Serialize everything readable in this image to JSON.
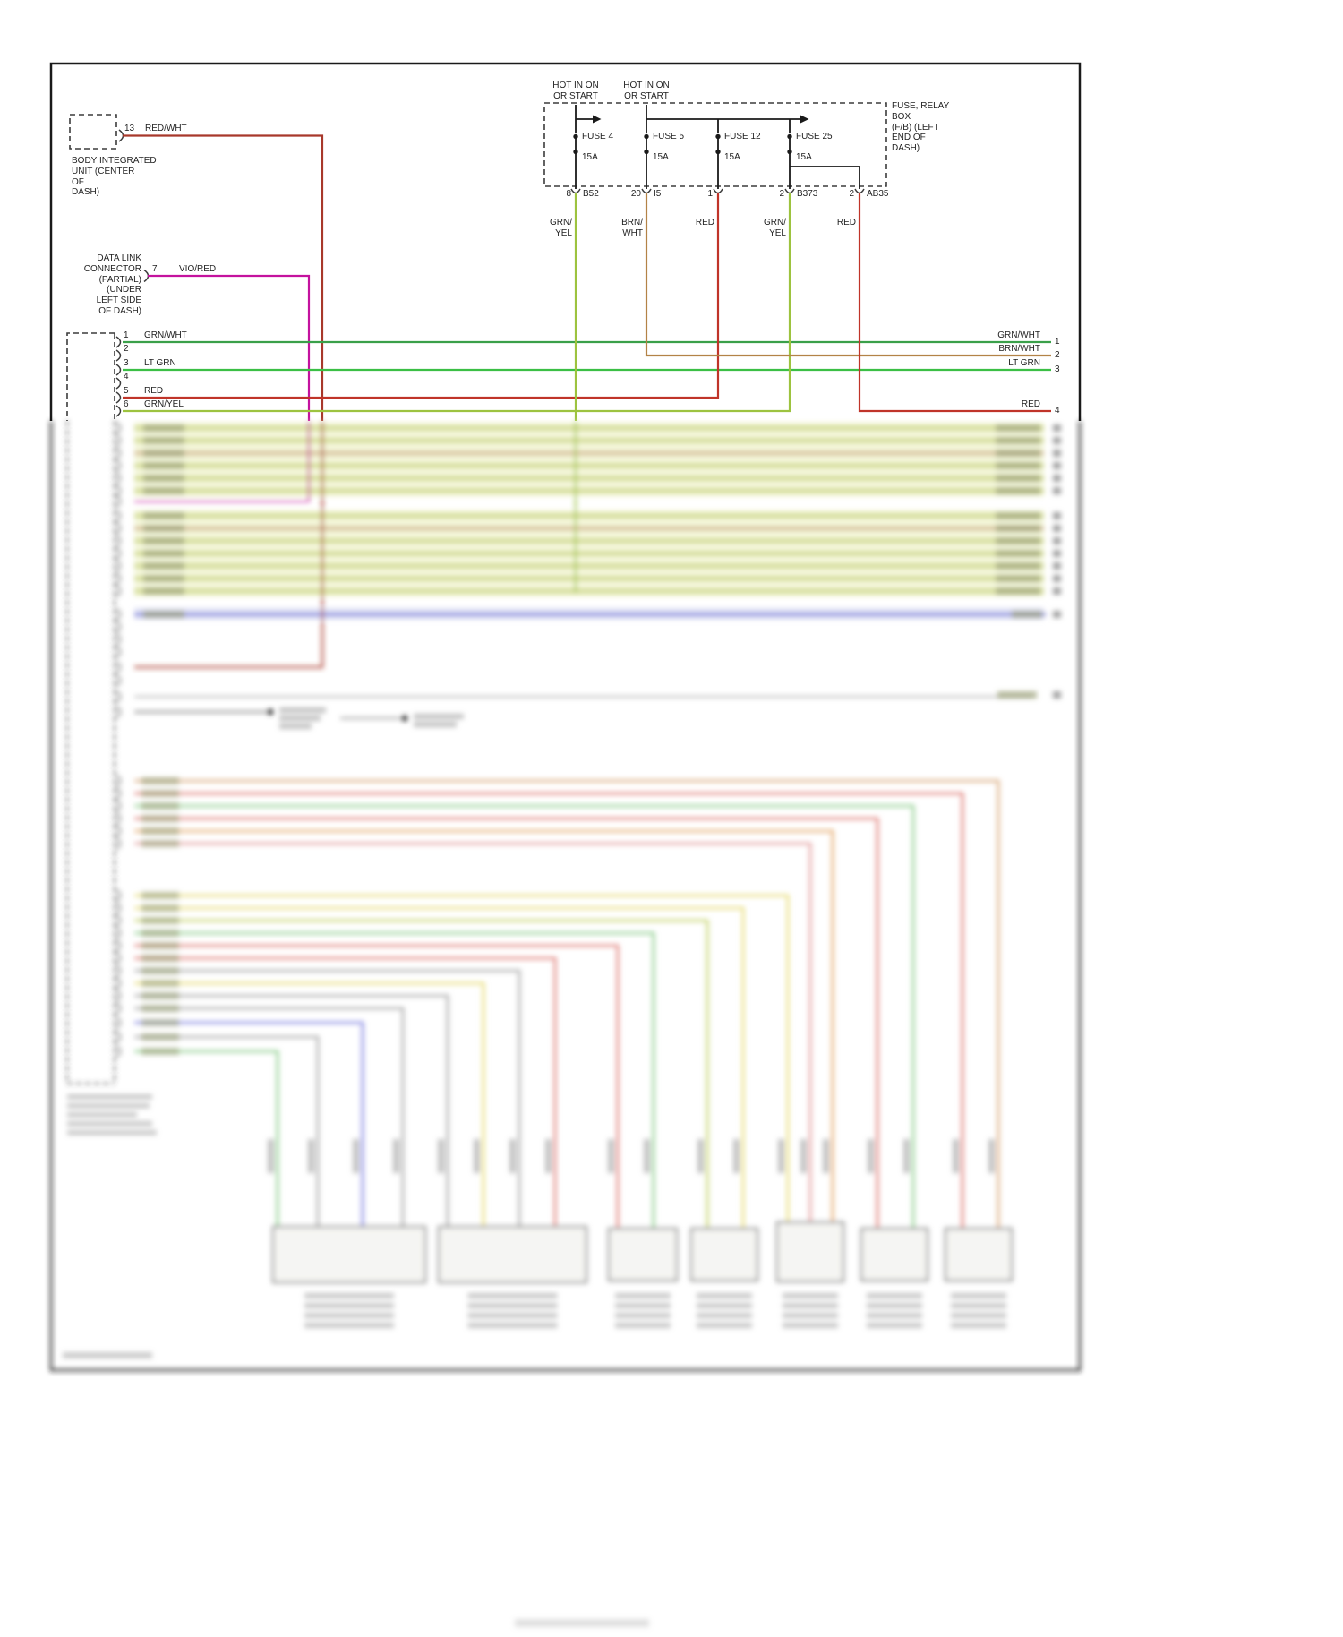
{
  "diagram": {
    "body_unit": {
      "pin": "13",
      "wire": "RED/WHT",
      "label": "BODY INTEGRATED\nUNIT (CENTER\nOF\nDASH)"
    },
    "data_link": {
      "pin": "7",
      "wire": "VIO/RED",
      "label": "DATA LINK\nCONNECTOR (PARTIAL)\n(UNDER\nLEFT SIDE\nOF DASH)"
    },
    "fuse_box": {
      "title": "FUSE, RELAY\nBOX\n(F/B) (LEFT\nEND OF\nDASH)",
      "hot_label_1": "HOT IN ON\nOR START",
      "hot_label_2": "HOT IN ON\nOR START",
      "fuses": [
        {
          "name": "FUSE 4",
          "amp": "15A"
        },
        {
          "name": "FUSE 5",
          "amp": "15A"
        },
        {
          "name": "FUSE 12",
          "amp": "15A"
        },
        {
          "name": "FUSE 25",
          "amp": "15A"
        }
      ],
      "exits": [
        {
          "pin": "8",
          "connector": "B52",
          "wire": "GRN/\nYEL"
        },
        {
          "pin": "20",
          "connector": "I5",
          "wire": "BRN/\nWHT"
        },
        {
          "pin": "1",
          "connector": "",
          "wire": "RED"
        },
        {
          "pin": "2",
          "connector": "B373",
          "wire": "GRN/\nYEL"
        },
        {
          "pin": "2",
          "connector": "AB35",
          "wire": "RED"
        }
      ]
    },
    "left_connector": {
      "pins": [
        {
          "pin": "1",
          "wire": "GRN/WHT"
        },
        {
          "pin": "2",
          "wire": ""
        },
        {
          "pin": "3",
          "wire": "LT GRN"
        },
        {
          "pin": "4",
          "wire": ""
        },
        {
          "pin": "5",
          "wire": "RED"
        },
        {
          "pin": "6",
          "wire": "GRN/YEL"
        }
      ]
    },
    "right_edge": {
      "rows": [
        {
          "wire": "GRN/WHT",
          "pin": "1"
        },
        {
          "wire": "BRN/WHT",
          "pin": "2"
        },
        {
          "wire": "LT GRN",
          "pin": "3"
        },
        {
          "wire": "RED",
          "pin": "4"
        }
      ]
    },
    "wire_colors": {
      "red_wht": "#a8382b",
      "vio_red": "#c4129e",
      "grn_wht": "#3aa04a",
      "lt_grn": "#3bbf45",
      "grn_yel": "#9dc33f",
      "brn_wht": "#b38347",
      "red": "#c03429"
    }
  }
}
